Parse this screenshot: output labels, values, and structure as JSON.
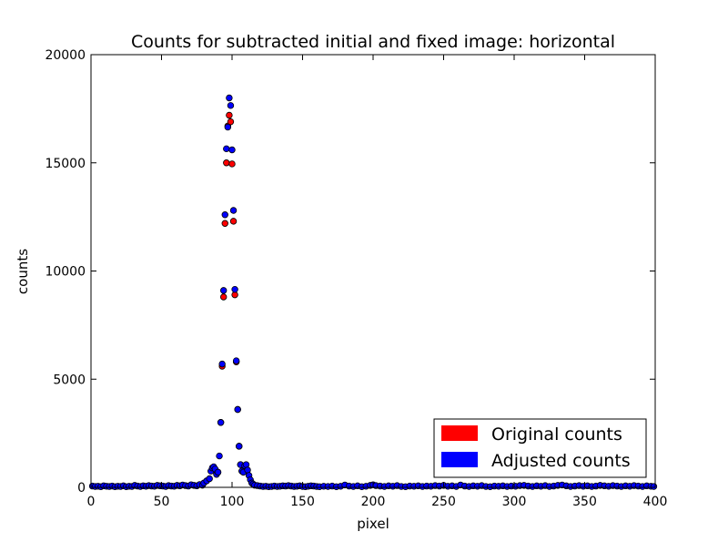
{
  "chart_data": {
    "type": "scatter",
    "title": "Counts for subtracted initial and fixed image: horizontal",
    "xlabel": "pixel",
    "ylabel": "counts",
    "xlim": [
      0,
      400
    ],
    "ylim": [
      0,
      20000
    ],
    "x_ticks": [
      0,
      50,
      100,
      150,
      200,
      250,
      300,
      350,
      400
    ],
    "y_ticks": [
      0,
      5000,
      10000,
      15000,
      20000
    ],
    "grid": false,
    "legend_position": "bottom-right",
    "series": [
      {
        "name": "Original counts",
        "color": "#ff0000",
        "points": [
          [
            88,
            800
          ],
          [
            90,
            700
          ],
          [
            92,
            3000
          ],
          [
            93,
            5600
          ],
          [
            94,
            8800
          ],
          [
            95,
            12200
          ],
          [
            96,
            15000
          ],
          [
            97,
            16700
          ],
          [
            98,
            17200
          ],
          [
            99,
            16900
          ],
          [
            100,
            14950
          ],
          [
            101,
            12300
          ],
          [
            102,
            8900
          ],
          [
            103,
            5800
          ],
          [
            104,
            3600
          ],
          [
            105,
            1900
          ],
          [
            106,
            1050
          ],
          [
            107,
            750
          ]
        ]
      },
      {
        "name": "Adjusted counts",
        "color": "#0000ff",
        "points": [
          [
            1,
            60
          ],
          [
            3,
            40
          ],
          [
            5,
            50
          ],
          [
            7,
            30
          ],
          [
            9,
            70
          ],
          [
            11,
            50
          ],
          [
            13,
            40
          ],
          [
            15,
            60
          ],
          [
            17,
            30
          ],
          [
            19,
            50
          ],
          [
            21,
            40
          ],
          [
            23,
            70
          ],
          [
            25,
            30
          ],
          [
            27,
            50
          ],
          [
            29,
            40
          ],
          [
            31,
            90
          ],
          [
            33,
            60
          ],
          [
            35,
            40
          ],
          [
            37,
            70
          ],
          [
            39,
            50
          ],
          [
            41,
            80
          ],
          [
            43,
            60
          ],
          [
            45,
            50
          ],
          [
            47,
            90
          ],
          [
            49,
            70
          ],
          [
            51,
            60
          ],
          [
            53,
            40
          ],
          [
            55,
            80
          ],
          [
            57,
            60
          ],
          [
            59,
            50
          ],
          [
            61,
            90
          ],
          [
            63,
            70
          ],
          [
            65,
            110
          ],
          [
            67,
            80
          ],
          [
            69,
            60
          ],
          [
            71,
            120
          ],
          [
            73,
            90
          ],
          [
            75,
            70
          ],
          [
            77,
            130
          ],
          [
            79,
            100
          ],
          [
            80,
            200
          ],
          [
            82,
            300
          ],
          [
            84,
            400
          ],
          [
            85,
            750
          ],
          [
            86,
            900
          ],
          [
            87,
            950
          ],
          [
            88,
            850
          ],
          [
            89,
            600
          ],
          [
            90,
            700
          ],
          [
            91,
            1450
          ],
          [
            92,
            3000
          ],
          [
            93,
            5700
          ],
          [
            94,
            9100
          ],
          [
            95,
            12600
          ],
          [
            96,
            15650
          ],
          [
            97,
            16650
          ],
          [
            98,
            18000
          ],
          [
            99,
            17650
          ],
          [
            100,
            15600
          ],
          [
            101,
            12800
          ],
          [
            102,
            9150
          ],
          [
            103,
            5850
          ],
          [
            104,
            3600
          ],
          [
            105,
            1900
          ],
          [
            106,
            1050
          ],
          [
            107,
            750
          ],
          [
            108,
            700
          ],
          [
            109,
            1000
          ],
          [
            110,
            1050
          ],
          [
            111,
            800
          ],
          [
            112,
            550
          ],
          [
            113,
            350
          ],
          [
            114,
            200
          ],
          [
            115,
            150
          ],
          [
            116,
            100
          ],
          [
            118,
            80
          ],
          [
            120,
            60
          ],
          [
            122,
            40
          ],
          [
            124,
            50
          ],
          [
            126,
            30
          ],
          [
            128,
            40
          ],
          [
            130,
            60
          ],
          [
            132,
            40
          ],
          [
            134,
            50
          ],
          [
            136,
            70
          ],
          [
            138,
            60
          ],
          [
            140,
            80
          ],
          [
            142,
            60
          ],
          [
            144,
            40
          ],
          [
            146,
            50
          ],
          [
            148,
            70
          ],
          [
            150,
            40
          ],
          [
            152,
            30
          ],
          [
            154,
            50
          ],
          [
            156,
            70
          ],
          [
            158,
            60
          ],
          [
            160,
            40
          ],
          [
            162,
            30
          ],
          [
            165,
            50
          ],
          [
            168,
            40
          ],
          [
            171,
            60
          ],
          [
            174,
            30
          ],
          [
            177,
            50
          ],
          [
            180,
            110
          ],
          [
            183,
            60
          ],
          [
            186,
            40
          ],
          [
            189,
            70
          ],
          [
            192,
            30
          ],
          [
            195,
            50
          ],
          [
            198,
            90
          ],
          [
            200,
            120
          ],
          [
            202,
            80
          ],
          [
            205,
            60
          ],
          [
            208,
            40
          ],
          [
            211,
            70
          ],
          [
            214,
            50
          ],
          [
            217,
            80
          ],
          [
            220,
            40
          ],
          [
            223,
            30
          ],
          [
            226,
            60
          ],
          [
            229,
            50
          ],
          [
            232,
            70
          ],
          [
            235,
            40
          ],
          [
            238,
            60
          ],
          [
            241,
            50
          ],
          [
            244,
            80
          ],
          [
            247,
            60
          ],
          [
            250,
            90
          ],
          [
            253,
            50
          ],
          [
            256,
            70
          ],
          [
            259,
            40
          ],
          [
            262,
            110
          ],
          [
            265,
            60
          ],
          [
            268,
            40
          ],
          [
            271,
            70
          ],
          [
            274,
            50
          ],
          [
            277,
            80
          ],
          [
            280,
            40
          ],
          [
            283,
            30
          ],
          [
            286,
            60
          ],
          [
            289,
            50
          ],
          [
            292,
            70
          ],
          [
            295,
            40
          ],
          [
            298,
            60
          ],
          [
            301,
            50
          ],
          [
            304,
            80
          ],
          [
            307,
            90
          ],
          [
            310,
            60
          ],
          [
            313,
            40
          ],
          [
            316,
            70
          ],
          [
            319,
            50
          ],
          [
            322,
            80
          ],
          [
            325,
            40
          ],
          [
            328,
            60
          ],
          [
            331,
            90
          ],
          [
            334,
            110
          ],
          [
            337,
            70
          ],
          [
            340,
            40
          ],
          [
            343,
            60
          ],
          [
            346,
            80
          ],
          [
            349,
            50
          ],
          [
            352,
            70
          ],
          [
            355,
            40
          ],
          [
            358,
            60
          ],
          [
            361,
            90
          ],
          [
            364,
            70
          ],
          [
            367,
            50
          ],
          [
            370,
            80
          ],
          [
            373,
            60
          ],
          [
            376,
            40
          ],
          [
            379,
            70
          ],
          [
            382,
            50
          ],
          [
            385,
            80
          ],
          [
            388,
            60
          ],
          [
            391,
            40
          ],
          [
            394,
            70
          ],
          [
            397,
            50
          ],
          [
            399,
            40
          ]
        ]
      }
    ]
  }
}
